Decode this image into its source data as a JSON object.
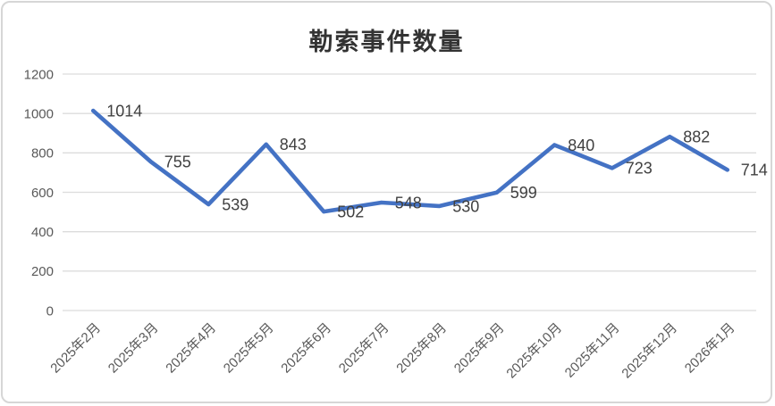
{
  "chart_data": {
    "type": "line",
    "title": "勒索事件数量",
    "categories": [
      "2025年2月",
      "2025年3月",
      "2025年4月",
      "2025年5月",
      "2025年6月",
      "2025年7月",
      "2025年8月",
      "2025年9月",
      "2025年10月",
      "2025年11月",
      "2025年12月",
      "2026年1月"
    ],
    "values": [
      1014,
      755,
      539,
      843,
      502,
      548,
      530,
      599,
      840,
      723,
      882,
      714
    ],
    "data_labels": [
      1014,
      755,
      539,
      843,
      502,
      548,
      530,
      599,
      840,
      723,
      882,
      714
    ],
    "xlabel": "",
    "ylabel": "",
    "ylim": [
      0,
      1200
    ],
    "y_ticks": [
      0,
      200,
      400,
      600,
      800,
      1000,
      1200
    ],
    "x_label_rotation_deg": -45,
    "grid": true,
    "legend_position": "none",
    "series_name": "勒索事件数量"
  },
  "colors": {
    "line": "#4472C4",
    "grid": "#DCDCDC",
    "axis_text": "#595959",
    "data_label_text": "#404040",
    "title_text": "#333333",
    "frame_border": "#D6D6D6",
    "background": "#FFFFFF"
  }
}
